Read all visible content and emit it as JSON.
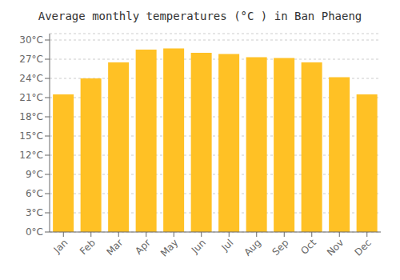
{
  "chart_data": {
    "type": "bar",
    "title": "Average monthly temperatures (°C ) in Ban Phaeng",
    "categories": [
      "Jan",
      "Feb",
      "Mar",
      "Apr",
      "May",
      "Jun",
      "Jul",
      "Aug",
      "Sep",
      "Oct",
      "Nov",
      "Dec"
    ],
    "values": [
      21.5,
      24.0,
      26.5,
      28.5,
      28.7,
      28.0,
      27.8,
      27.3,
      27.2,
      26.5,
      24.2,
      21.5
    ],
    "color": "#FFC125",
    "ylim": [
      0,
      31
    ],
    "yticks": [
      {
        "value": 0,
        "label": "0°C"
      },
      {
        "value": 3,
        "label": "3°C"
      },
      {
        "value": 6,
        "label": "6°C"
      },
      {
        "value": 9,
        "label": "9°C"
      },
      {
        "value": 12,
        "label": "12°C"
      },
      {
        "value": 15,
        "label": "15°C"
      },
      {
        "value": 18,
        "label": "18°C"
      },
      {
        "value": 21,
        "label": "21°C"
      },
      {
        "value": 24,
        "label": "24°C"
      },
      {
        "value": 27,
        "label": "27°C"
      },
      {
        "value": 30,
        "label": "30°C"
      }
    ],
    "grid": true
  }
}
